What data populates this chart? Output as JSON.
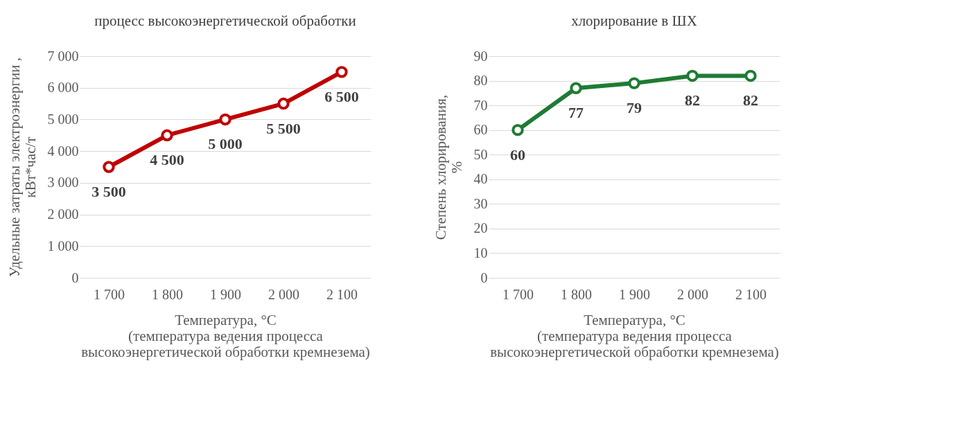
{
  "chart_data": [
    {
      "type": "line",
      "title": "процесс высокоэнергетической обработки",
      "xlabel": "Температура, °C\n(температура ведения процесса\nвысокоэнергетической обработки кремнезема)",
      "ylabel": "Удельные затраты электроэнергии ,\nкВт*час/т",
      "categories": [
        "1 700",
        "1 800",
        "1 900",
        "2 000",
        "2 100"
      ],
      "series": [
        {
          "color": "#c00000",
          "values": [
            3500,
            4500,
            5000,
            5500,
            6500
          ],
          "value_labels": [
            "3 500",
            "4 500",
            "5 000",
            "5 500",
            "6 500"
          ]
        }
      ],
      "ylim": [
        0,
        7000
      ],
      "yticks": [
        0,
        {
          "value": 1000,
          "label": "1 000"
        },
        {
          "value": 2000,
          "label": "2 000"
        },
        {
          "value": 3000,
          "label": "3 000"
        },
        {
          "value": 4000,
          "label": "4 000"
        },
        {
          "value": 5000,
          "label": "5 000"
        },
        {
          "value": 6000,
          "label": "6 000"
        },
        {
          "value": 7000,
          "label": "7 000"
        }
      ],
      "grid": "y",
      "marker": "circle",
      "line_style": "solid",
      "legend": false
    },
    {
      "type": "line",
      "title": "хлорирование в ШХ",
      "xlabel": "Температура, °C\n(температура ведения процесса\nвысокоэнергетической обработки кремнезема)",
      "ylabel": "Степень хлорирования,\n%",
      "categories": [
        "1 700",
        "1 800",
        "1 900",
        "2 000",
        "2 100"
      ],
      "series": [
        {
          "color": "#1e7b34",
          "values": [
            60,
            77,
            79,
            82,
            82
          ]
        }
      ],
      "ylim": [
        0,
        90
      ],
      "yticks": [
        0,
        10,
        20,
        30,
        40,
        50,
        60,
        70,
        80,
        90
      ],
      "grid": "y",
      "marker": "circle",
      "line_style": "solid",
      "legend": false,
      "data_labels": true
    }
  ]
}
